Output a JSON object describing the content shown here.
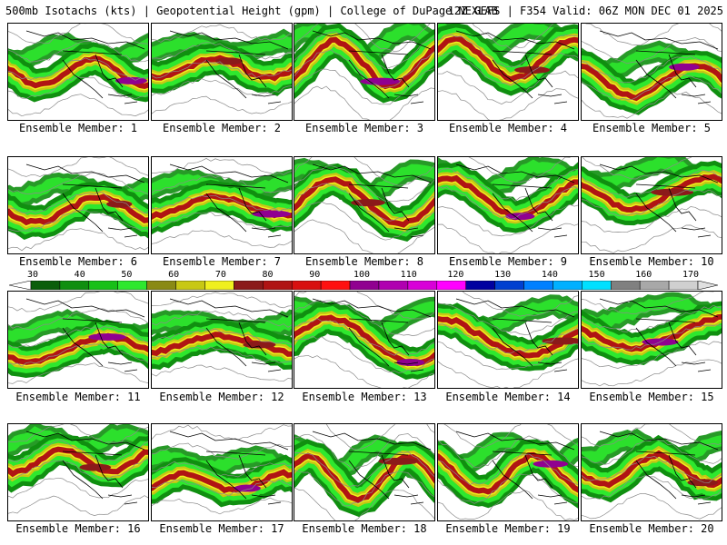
{
  "header": {
    "left": "500mb Isotachs (kts) | Geopotential Height (gpm) | College of DuPage NEXLAB",
    "right": "12Z GEFS | F354 Valid: 06Z MON DEC 01 2025"
  },
  "members": [
    {
      "label": "Ensemble Member: 1"
    },
    {
      "label": "Ensemble Member: 2"
    },
    {
      "label": "Ensemble Member: 3"
    },
    {
      "label": "Ensemble Member: 4"
    },
    {
      "label": "Ensemble Member: 5"
    },
    {
      "label": "Ensemble Member: 6"
    },
    {
      "label": "Ensemble Member: 7"
    },
    {
      "label": "Ensemble Member: 8"
    },
    {
      "label": "Ensemble Member: 9"
    },
    {
      "label": "Ensemble Member: 10"
    },
    {
      "label": "Ensemble Member: 11"
    },
    {
      "label": "Ensemble Member: 12"
    },
    {
      "label": "Ensemble Member: 13"
    },
    {
      "label": "Ensemble Member: 14"
    },
    {
      "label": "Ensemble Member: 15"
    },
    {
      "label": "Ensemble Member: 16"
    },
    {
      "label": "Ensemble Member: 17"
    },
    {
      "label": "Ensemble Member: 18"
    },
    {
      "label": "Ensemble Member: 19"
    },
    {
      "label": "Ensemble Member: 20"
    }
  ],
  "colorbar": {
    "labels": [
      "30",
      "40",
      "50",
      "60",
      "70",
      "80",
      "90",
      "100",
      "110",
      "120",
      "130",
      "140",
      "150",
      "160",
      "170"
    ],
    "colors": [
      "#0b5e0b",
      "#108f10",
      "#18c018",
      "#2ee82e",
      "#8a8a14",
      "#c8c814",
      "#f0f01e",
      "#8b1a1a",
      "#b01414",
      "#d81010",
      "#ff1010",
      "#900090",
      "#b000b0",
      "#d800d8",
      "#ff00ff",
      "#0000a0",
      "#0040d0",
      "#0080ff",
      "#00b0ff",
      "#00e0ff",
      "#808080",
      "#a8a8a8",
      "#d0d0d0"
    ]
  }
}
